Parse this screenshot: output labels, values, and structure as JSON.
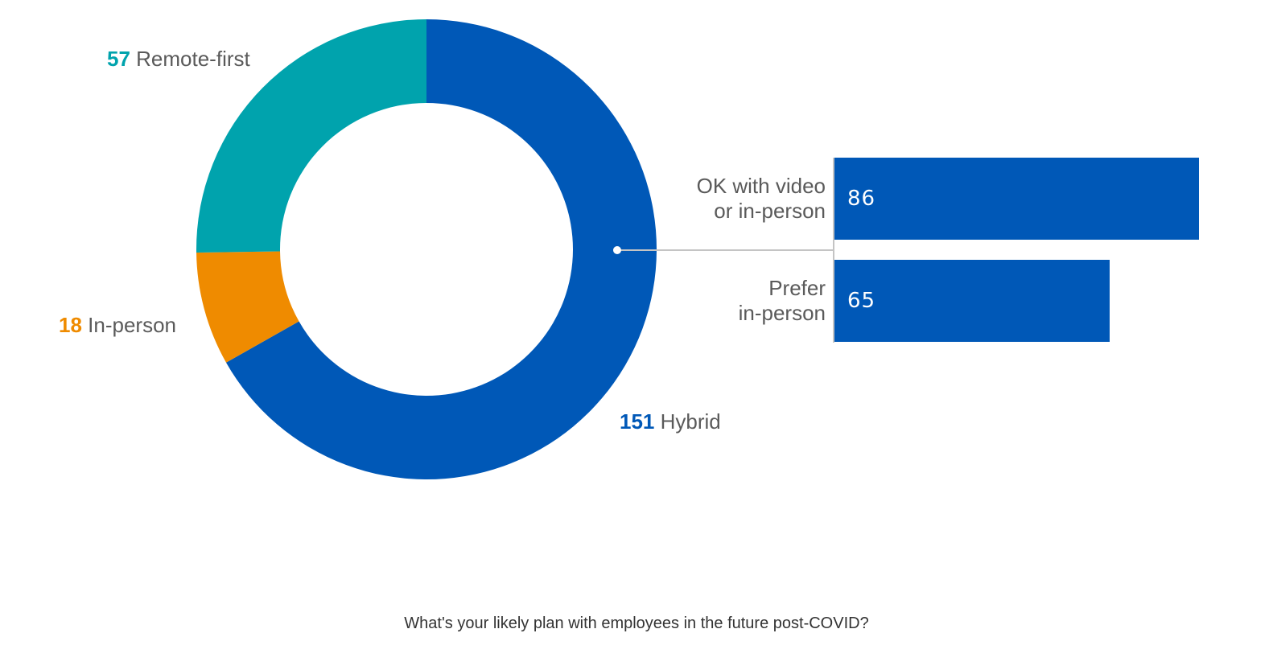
{
  "caption": "What's your likely plan with employees in the future post-COVID?",
  "colors": {
    "hybrid": "#0058b7",
    "remote": "#00a3ad",
    "inperson": "#ef8b00",
    "connector": "#c4c4c4",
    "bar": "#0058b7"
  },
  "chart_data": [
    {
      "type": "pie",
      "variant": "donut",
      "categories": [
        "Hybrid",
        "In-person",
        "Remote-first"
      ],
      "values": [
        151,
        18,
        57
      ],
      "labels": [
        {
          "number": "151",
          "text": "Hybrid"
        },
        {
          "number": "18",
          "text": "In-person"
        },
        {
          "number": "57",
          "text": "Remote-first"
        }
      ]
    },
    {
      "type": "bar",
      "orientation": "horizontal",
      "breakdown_of": "Hybrid",
      "categories": [
        [
          "OK with video",
          "or in-person"
        ],
        [
          "Prefer",
          "in-person"
        ]
      ],
      "values": [
        86,
        65
      ]
    }
  ]
}
